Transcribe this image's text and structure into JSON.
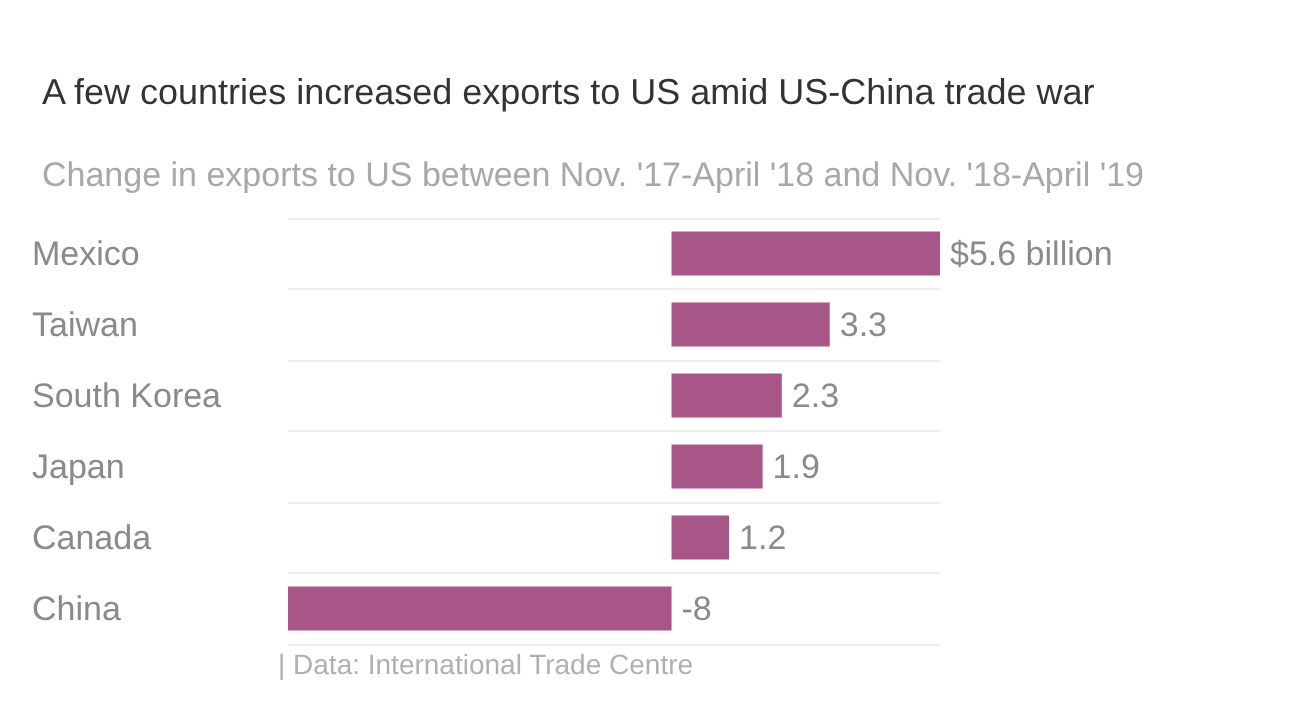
{
  "chart_data": {
    "type": "bar",
    "orientation": "horizontal",
    "title": "A few countries increased exports to US amid US-China trade war",
    "subtitle": "Change in exports to US between Nov. '17-April '18 and Nov. '18-April '19",
    "categories": [
      "Mexico",
      "Taiwan",
      "South Korea",
      "Japan",
      "Canada",
      "China"
    ],
    "values": [
      5.6,
      3.3,
      2.3,
      1.9,
      1.2,
      -8
    ],
    "value_labels": [
      "$5.6 billion",
      "3.3",
      "2.3",
      "1.9",
      "1.2",
      "-8"
    ],
    "color": "#a85587",
    "xlim": [
      -8,
      5.6
    ],
    "grid": "y",
    "annotations": [
      "| Data: International Trade Centre"
    ]
  }
}
